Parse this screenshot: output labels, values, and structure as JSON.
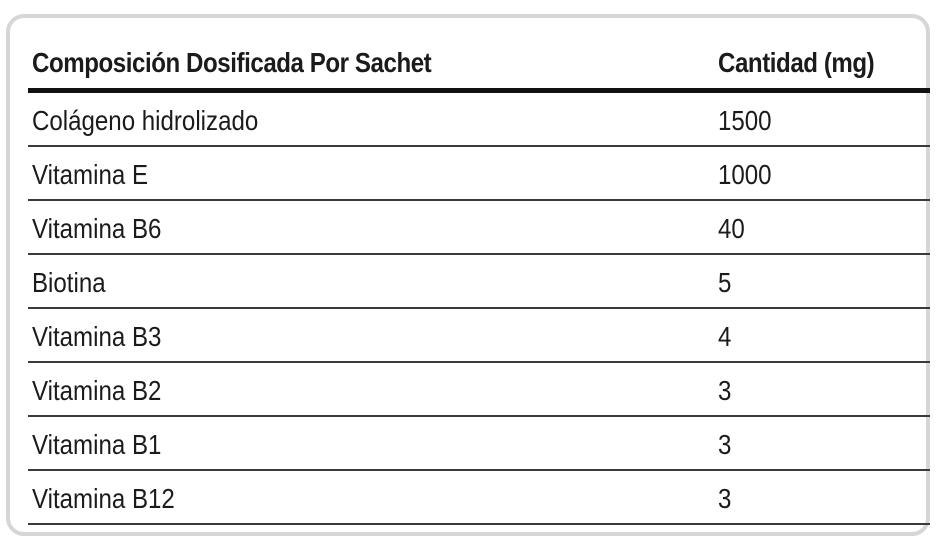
{
  "table": {
    "header": {
      "component": "Composición Dosificada Por Sachet",
      "amount": "Cantidad (mg)"
    },
    "rows": [
      {
        "name": "Colágeno hidrolizado",
        "amount": "1500"
      },
      {
        "name": "Vitamina E",
        "amount": "1000"
      },
      {
        "name": "Vitamina B6",
        "amount": "40"
      },
      {
        "name": "Biotina",
        "amount": "5"
      },
      {
        "name": "Vitamina B3",
        "amount": "4"
      },
      {
        "name": "Vitamina B2",
        "amount": "3"
      },
      {
        "name": "Vitamina B1",
        "amount": "3"
      },
      {
        "name": "Vitamina B12",
        "amount": "3"
      }
    ]
  }
}
